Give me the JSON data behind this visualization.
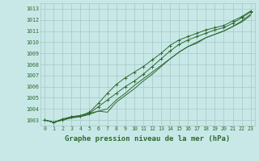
{
  "title": "Graphe pression niveau de la mer (hPa)",
  "x_labels": [
    "0",
    "1",
    "2",
    "3",
    "4",
    "5",
    "6",
    "7",
    "8",
    "9",
    "10",
    "11",
    "12",
    "13",
    "14",
    "15",
    "16",
    "17",
    "18",
    "19",
    "20",
    "21",
    "22",
    "23"
  ],
  "ylim": [
    1002.5,
    1013.5
  ],
  "xlim": [
    -0.5,
    23.5
  ],
  "yticks": [
    1003,
    1004,
    1005,
    1006,
    1007,
    1008,
    1009,
    1010,
    1011,
    1012,
    1013
  ],
  "line1": [
    1003.0,
    1002.8,
    1003.0,
    1003.2,
    1003.3,
    1003.6,
    1003.8,
    1003.7,
    1004.6,
    1005.2,
    1005.8,
    1006.5,
    1007.1,
    1007.8,
    1008.5,
    1009.1,
    1009.6,
    1010.0,
    1010.4,
    1010.7,
    1011.0,
    1011.4,
    1011.9,
    1012.5
  ],
  "line2": [
    1003.0,
    1002.8,
    1003.0,
    1003.2,
    1003.3,
    1003.5,
    1003.8,
    1004.0,
    1004.8,
    1005.4,
    1006.1,
    1006.7,
    1007.3,
    1007.9,
    1008.5,
    1009.1,
    1009.6,
    1009.9,
    1010.4,
    1010.7,
    1011.0,
    1011.4,
    1011.8,
    1012.4
  ],
  "line3": [
    1003.0,
    1002.8,
    1003.0,
    1003.3,
    1003.4,
    1003.6,
    1004.2,
    1004.8,
    1005.4,
    1006.0,
    1006.5,
    1007.1,
    1007.8,
    1008.5,
    1009.2,
    1009.8,
    1010.2,
    1010.5,
    1010.8,
    1011.1,
    1011.3,
    1011.7,
    1012.2,
    1012.7
  ],
  "line4": [
    1003.0,
    1002.8,
    1003.1,
    1003.3,
    1003.4,
    1003.7,
    1004.5,
    1005.4,
    1006.2,
    1006.8,
    1007.3,
    1007.8,
    1008.4,
    1009.0,
    1009.7,
    1010.2,
    1010.5,
    1010.8,
    1011.1,
    1011.3,
    1011.5,
    1011.9,
    1012.3,
    1012.8
  ],
  "line_color": "#2d6a2d",
  "bg_color": "#c8e8e8",
  "grid_color": "#a8c8c8",
  "title_color": "#2d6a2d",
  "title_fontsize": 6.5,
  "tick_fontsize": 4.8
}
